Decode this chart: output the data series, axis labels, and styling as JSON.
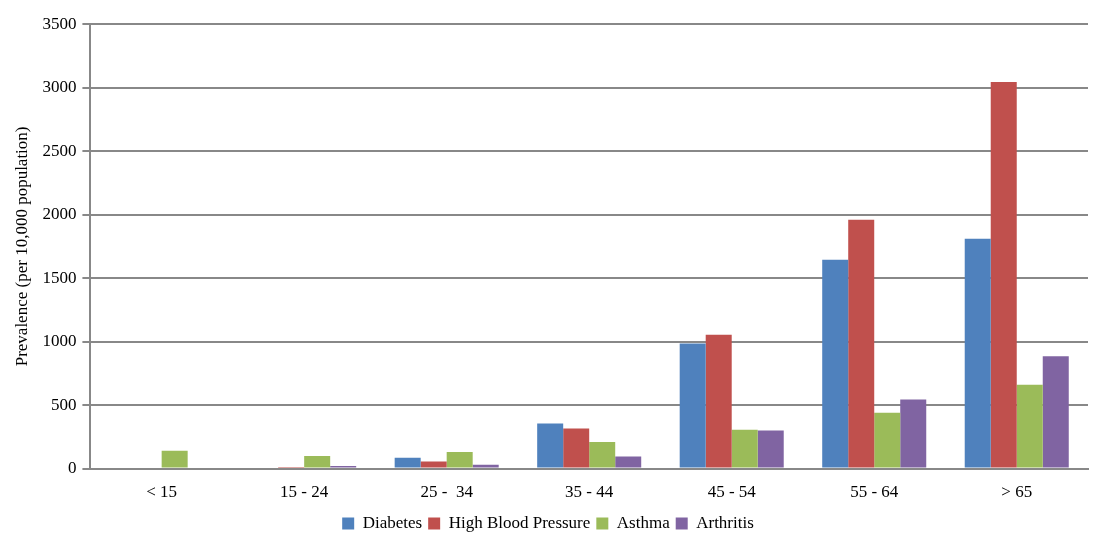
{
  "chart_data": {
    "type": "bar",
    "ylabel": "Prevalence (per 10,000 population)",
    "categories": [
      "< 15",
      "15 - 24",
      "25 -  34",
      "35 - 44",
      "45 - 54",
      "55 - 64",
      "> 65"
    ],
    "series": [
      {
        "name": "Diabetes",
        "color": "#4f81bd",
        "values": [
          null,
          8,
          85,
          355,
          985,
          1645,
          1810
        ]
      },
      {
        "name": "High Blood Pressure",
        "color": "#c0504d",
        "values": [
          null,
          12,
          55,
          315,
          1055,
          1960,
          3045
        ]
      },
      {
        "name": "Asthma",
        "color": "#9bbb59",
        "values": [
          140,
          100,
          130,
          210,
          305,
          440,
          660
        ]
      },
      {
        "name": "Arthritis",
        "color": "#8064a2",
        "values": [
          0,
          20,
          30,
          95,
          300,
          545,
          885
        ]
      }
    ],
    "ylim": [
      0,
      3500
    ],
    "yticks": [
      0,
      500,
      1000,
      1500,
      2000,
      2500,
      3000,
      3500
    ],
    "grid": "y",
    "legend": "bottom"
  }
}
